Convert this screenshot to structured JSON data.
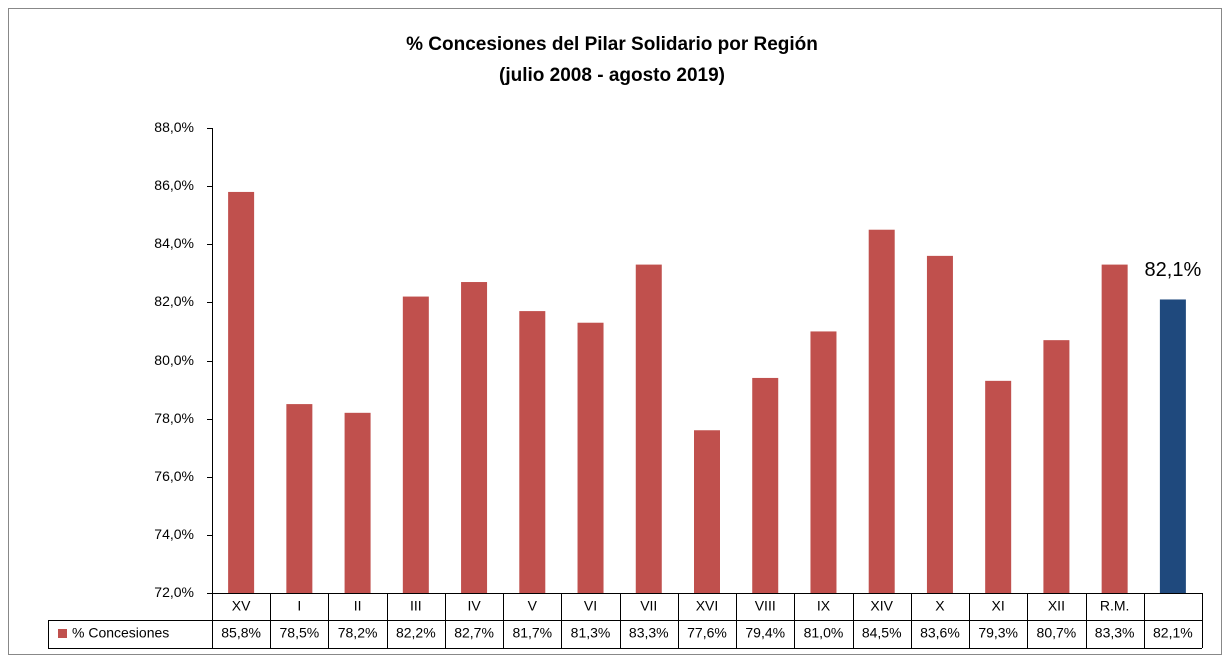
{
  "chart_data": {
    "type": "bar",
    "title": "% Concesiones del Pilar Solidario por Región",
    "subtitle": "(julio 2008  - agosto 2019)",
    "categories": [
      "XV",
      "I",
      "II",
      "III",
      "IV",
      "V",
      "VI",
      "VII",
      "XVI",
      "VIII",
      "IX",
      "XIV",
      "X",
      "XI",
      "XII",
      "R.M.",
      null
    ],
    "series": [
      {
        "name": "% Concesiones",
        "color": "#c0504d",
        "colors": [
          "#c0504d",
          "#c0504d",
          "#c0504d",
          "#c0504d",
          "#c0504d",
          "#c0504d",
          "#c0504d",
          "#c0504d",
          "#c0504d",
          "#c0504d",
          "#c0504d",
          "#c0504d",
          "#c0504d",
          "#c0504d",
          "#c0504d",
          "#c0504d",
          "#1f497d"
        ],
        "values": [
          85.8,
          78.5,
          78.2,
          82.2,
          82.7,
          81.7,
          81.3,
          83.3,
          77.6,
          79.4,
          81.0,
          84.5,
          83.6,
          79.3,
          80.7,
          83.3,
          82.1
        ],
        "value_labels": [
          "85,8%",
          "78,5%",
          "78,2%",
          "82,2%",
          "82,7%",
          "81,7%",
          "81,3%",
          "83,3%",
          "77,6%",
          "79,4%",
          "81,0%",
          "84,5%",
          "83,6%",
          "79,3%",
          "80,7%",
          "83,3%",
          "82,1%"
        ]
      }
    ],
    "ylim": [
      72,
      88
    ],
    "yticks": [
      {
        "value": 72,
        "label": "72,0%"
      },
      {
        "value": 74,
        "label": "74,0%"
      },
      {
        "value": 76,
        "label": "76,0%"
      },
      {
        "value": 78,
        "label": "78,0%"
      },
      {
        "value": 80,
        "label": "80,0%"
      },
      {
        "value": 82,
        "label": "82,0%"
      },
      {
        "value": 84,
        "label": "84,0%"
      },
      {
        "value": 86,
        "label": "86,0%"
      },
      {
        "value": 88,
        "label": "88,0%"
      }
    ],
    "grid": false,
    "legend": "table"
  }
}
